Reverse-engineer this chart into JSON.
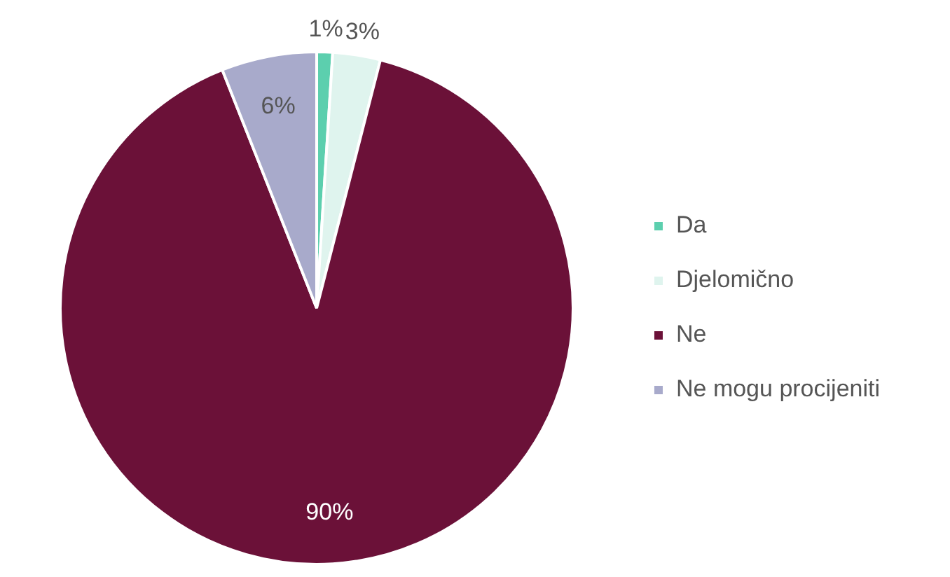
{
  "chart_data": {
    "type": "pie",
    "categories": [
      "Da",
      "Djelomično",
      "Ne",
      "Ne mogu procijeniti"
    ],
    "values": [
      1,
      3,
      90,
      6
    ],
    "colors": [
      "#5ccfae",
      "#dff4ee",
      "#6b1138",
      "#a8aacb"
    ],
    "value_labels": [
      "1%",
      "3%",
      "90%",
      "6%"
    ],
    "legend": "right"
  }
}
